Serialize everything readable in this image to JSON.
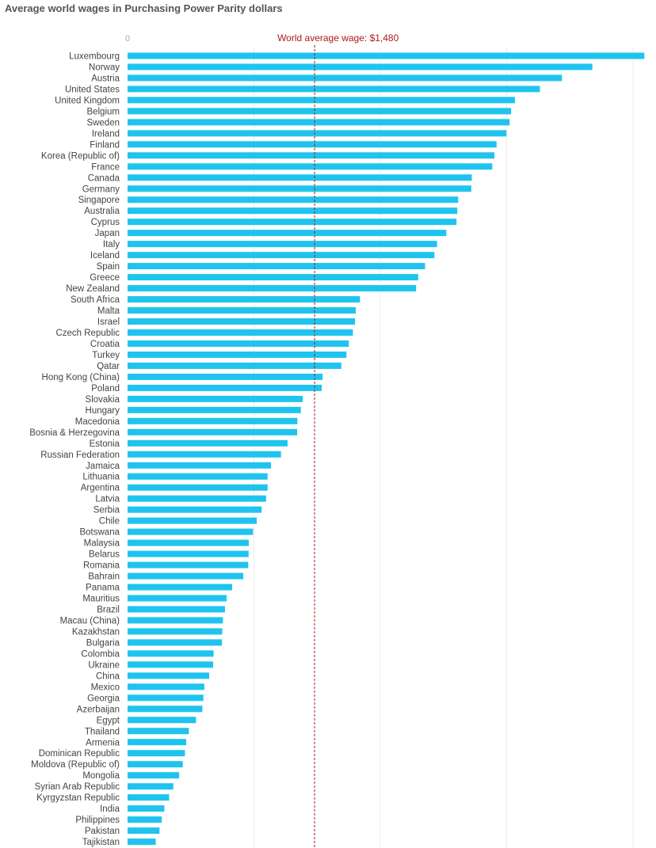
{
  "chart_data": {
    "type": "bar",
    "orientation": "horizontal",
    "title": "Average world wages in Purchasing Power Parity dollars",
    "x_tick_labels": [
      "0"
    ],
    "grid": true,
    "bar_color": "#1fc4ee",
    "reference_color": "#b01818",
    "reference_line": {
      "label": "World average wage: $1,480",
      "value": 1480
    },
    "categories": [
      "Luxembourg",
      "Norway",
      "Austria",
      "United States",
      "United Kingdom",
      "Belgium",
      "Sweden",
      "Ireland",
      "Finland",
      "Korea (Republic of)",
      "France",
      "Canada",
      "Germany",
      "Singapore",
      "Australia",
      "Cyprus",
      "Japan",
      "Italy",
      "Iceland",
      "Spain",
      "Greece",
      "New Zealand",
      "South Africa",
      "Malta",
      "Israel",
      "Czech Republic",
      "Croatia",
      "Turkey",
      "Qatar",
      "Hong Kong (China)",
      "Poland",
      "Slovakia",
      "Hungary",
      "Macedonia",
      "Bosnia & Herzegovina",
      "Estonia",
      "Russian Federation",
      "Jamaica",
      "Lithuania",
      "Argentina",
      "Latvia",
      "Serbia",
      "Chile",
      "Botswana",
      "Malaysia",
      "Belarus",
      "Romania",
      "Bahrain",
      "Panama",
      "Mauritius",
      "Brazil",
      "Macau (China)",
      "Kazakhstan",
      "Bulgaria",
      "Colombia",
      "Ukraine",
      "China",
      "Mexico",
      "Georgia",
      "Azerbaijan",
      "Egypt",
      "Thailand",
      "Armenia",
      "Dominican Republic",
      "Moldova (Republic of)",
      "Mongolia",
      "Syrian Arab Republic",
      "Kyrgyzstan Republic",
      "India",
      "Philippines",
      "Pakistan",
      "Tajikistan"
    ],
    "values": [
      4089,
      3678,
      3437,
      3263,
      3065,
      3035,
      3023,
      2998,
      2920,
      2903,
      2886,
      2724,
      2720,
      2616,
      2609,
      2603,
      2522,
      2449,
      2428,
      2354,
      2300,
      2283,
      1839,
      1806,
      1800,
      1783,
      1751,
      1732,
      1691,
      1543,
      1536,
      1386,
      1371,
      1344,
      1342,
      1266,
      1214,
      1135,
      1108,
      1108,
      1096,
      1061,
      1022,
      993,
      959,
      958,
      955,
      916,
      828,
      784,
      771,
      755,
      749,
      747,
      681,
      677,
      646,
      607,
      600,
      592,
      542,
      485,
      464,
      454,
      437,
      408,
      362,
      329,
      291,
      271,
      253,
      223
    ],
    "xlim": [
      0,
      4100
    ]
  }
}
